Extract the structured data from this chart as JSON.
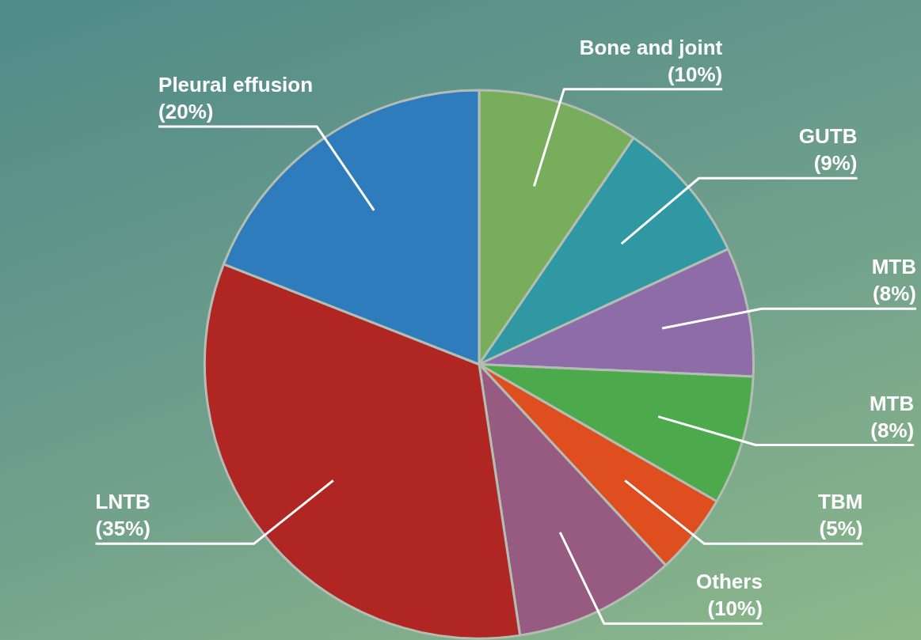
{
  "chart_data": {
    "type": "pie",
    "categories": [
      "Bone and joint",
      "GUTB",
      "MTB",
      "MTB",
      "TBM",
      "Others",
      "LNTB",
      "Pleural effusion"
    ],
    "values": [
      10,
      9,
      8,
      8,
      5,
      10,
      35,
      20
    ],
    "colors": [
      "#78ad5c",
      "#2f98a3",
      "#8d6ca8",
      "#4caa4c",
      "#de4e1f",
      "#975a80",
      "#b02623",
      "#2f7cbd"
    ],
    "value_labels": [
      "(10%)",
      "(9%)",
      "(8%)",
      "(8%)",
      "(5%)",
      "(10%)",
      "(35%)",
      "(20%)"
    ]
  }
}
